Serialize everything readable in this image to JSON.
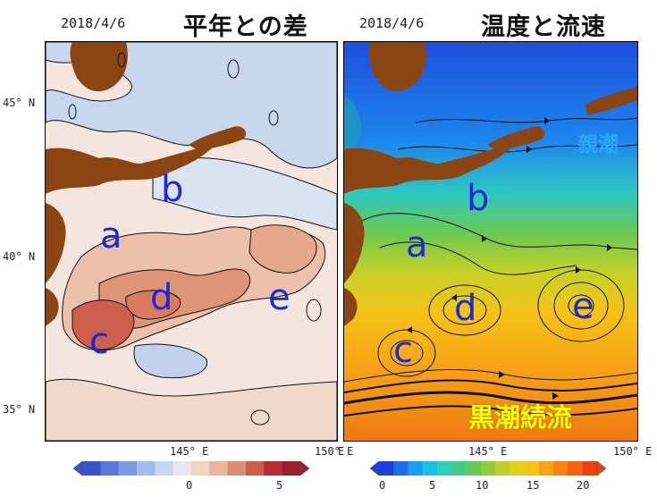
{
  "left_panel": {
    "date": "2018/4/6",
    "title": "平年との差",
    "regions": [
      "a",
      "b",
      "c",
      "d",
      "e"
    ],
    "y_labels": [
      "45° N",
      "40° N",
      "35° N"
    ],
    "x_labels": [
      "145° E",
      "150° E"
    ],
    "colorbar_ticks": [
      "0",
      "5"
    ],
    "colorbar_colors": [
      "#3b55c8",
      "#5a78d8",
      "#7d9be3",
      "#a3bbec",
      "#c8d6ef",
      "#e8e9ee",
      "#f2d3c6",
      "#ebb59d",
      "#de8c74",
      "#cc5c4c",
      "#b32e35",
      "#9a1e2c"
    ]
  },
  "right_panel": {
    "date": "2018/4/6",
    "title": "温度と流速",
    "regions": [
      "a",
      "b",
      "c",
      "d",
      "e"
    ],
    "x_labels": [
      "E",
      "145° E",
      "150° E"
    ],
    "colorbar_ticks": [
      "0",
      "5",
      "10",
      "15",
      "20"
    ],
    "colorbar_colors": [
      "#1f3fd6",
      "#1e6ee8",
      "#1b9df2",
      "#20c0e6",
      "#2fd1b6",
      "#43cc86",
      "#63c95a",
      "#8fcc3c",
      "#bcd12d",
      "#e0d020",
      "#f5c418",
      "#f8a515",
      "#f58412",
      "#f0630f",
      "#e8430c"
    ],
    "labels": {
      "oyashio": "親潮",
      "kuroshio": "黒潮続流"
    }
  }
}
